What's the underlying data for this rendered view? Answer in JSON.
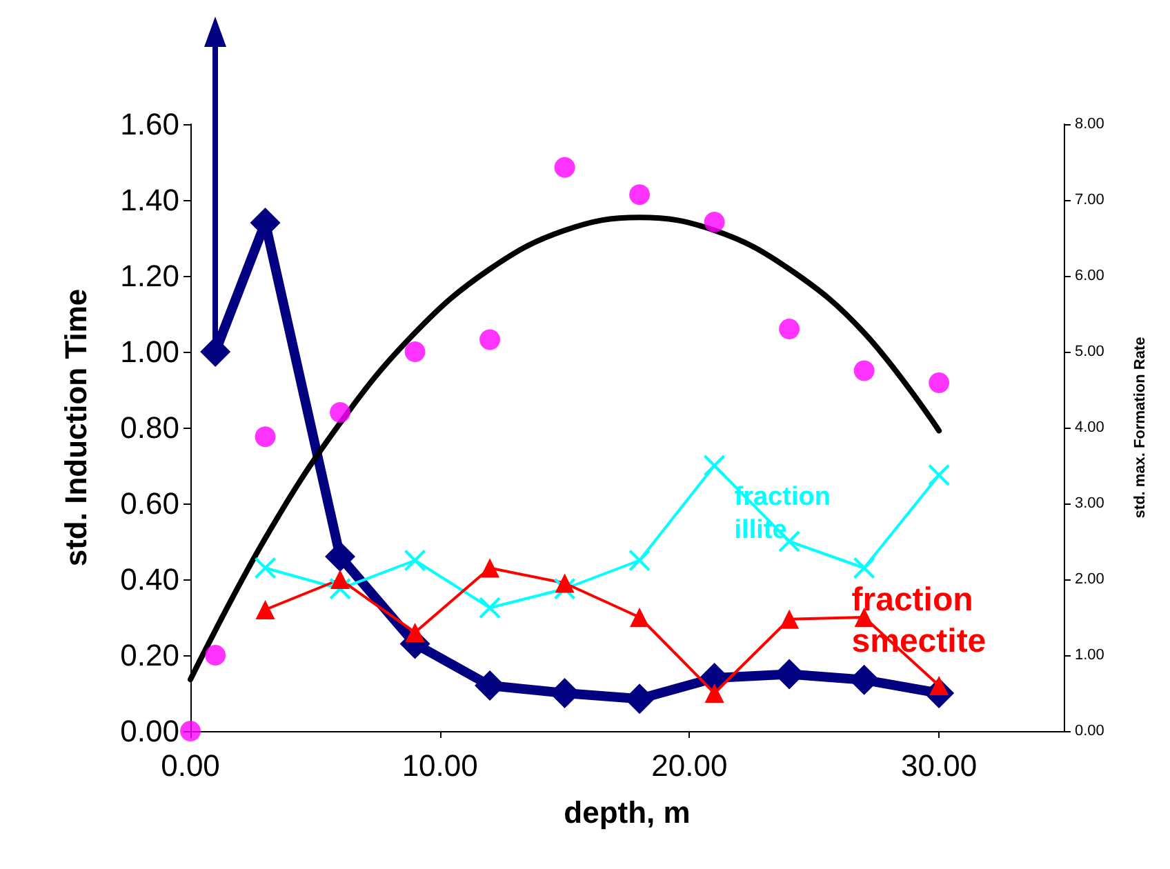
{
  "chart_data": {
    "type": "line",
    "xlabel": "depth, m",
    "ylabel": "std. Induction Time",
    "y2label": "std. max. Formation Rate",
    "x": [
      1,
      3,
      6,
      9,
      12,
      15,
      18,
      21,
      24,
      27,
      30
    ],
    "series": [
      {
        "color": "#000080",
        "marker": "diamond",
        "values": [
          1.0,
          1.34,
          0.46,
          0.23,
          0.12,
          0.1,
          0.085,
          0.14,
          0.15,
          0.135,
          0.1
        ]
      },
      {
        "name": "fraction illite",
        "color": "#00ffff",
        "marker": "cross",
        "x": [
          3,
          6,
          9,
          12,
          15,
          18,
          21,
          24,
          27,
          30
        ],
        "values": [
          0.43,
          0.375,
          0.45,
          0.325,
          0.375,
          0.45,
          0.7,
          0.5,
          0.43,
          0.675
        ]
      },
      {
        "name": "fraction smectite",
        "color": "#ff0000",
        "marker": "triangle",
        "x": [
          3,
          6,
          9,
          12,
          15,
          18,
          21,
          24,
          27,
          30
        ],
        "values": [
          0.32,
          0.4,
          0.26,
          0.43,
          0.39,
          0.3,
          0.1,
          0.295,
          0.3,
          0.12
        ]
      },
      {
        "type": "scatter",
        "axis": "y2",
        "color": "#ff00ff",
        "marker": "circle",
        "x": [
          0,
          1,
          3,
          6,
          9,
          12,
          15,
          18,
          21,
          24,
          27,
          30
        ],
        "values": [
          0,
          1.0,
          3.88,
          4.2,
          5.0,
          5.16,
          7.43,
          7.07,
          6.71,
          5.3,
          4.75,
          4.59
        ]
      },
      {
        "type": "line",
        "axis": "y2",
        "color": "#000000",
        "marker": "none",
        "x": [
          0,
          3,
          6,
          9,
          12,
          15,
          18,
          21,
          24,
          27,
          30
        ],
        "values": [
          0.68,
          2.54,
          4.06,
          5.25,
          6.09,
          6.6,
          6.77,
          6.6,
          6.09,
          5.25,
          3.96
        ]
      }
    ],
    "xlim": [
      0,
      35
    ],
    "xticks": [
      {
        "value": 0,
        "label": "0.00"
      },
      {
        "value": 10,
        "label": "10.00"
      },
      {
        "value": 20,
        "label": "20.00"
      },
      {
        "value": 30,
        "label": "30.00"
      }
    ],
    "ylim": [
      0,
      1.6
    ],
    "yticks": [
      {
        "value": 0,
        "label": "0.00"
      },
      {
        "value": 0.2,
        "label": "0.20"
      },
      {
        "value": 0.4,
        "label": "0.40"
      },
      {
        "value": 0.6,
        "label": "0.60"
      },
      {
        "value": 0.8,
        "label": "0.80"
      },
      {
        "value": 1.0,
        "label": "1.00"
      },
      {
        "value": 1.2,
        "label": "1.20"
      },
      {
        "value": 1.4,
        "label": "1.40"
      },
      {
        "value": 1.6,
        "label": "1.60"
      }
    ],
    "y2lim": [
      0,
      8
    ],
    "y2ticks": [
      {
        "value": 0,
        "label": "0.00"
      },
      {
        "value": 1,
        "label": "1.00"
      },
      {
        "value": 2,
        "label": "2.00"
      },
      {
        "value": 3,
        "label": "3.00"
      },
      {
        "value": 4,
        "label": "4.00"
      },
      {
        "value": 5,
        "label": "5.00"
      },
      {
        "value": 6,
        "label": "6.00"
      },
      {
        "value": 7,
        "label": "7.00"
      },
      {
        "value": 8,
        "label": "8.00"
      }
    ],
    "grid": false,
    "legend": false
  }
}
